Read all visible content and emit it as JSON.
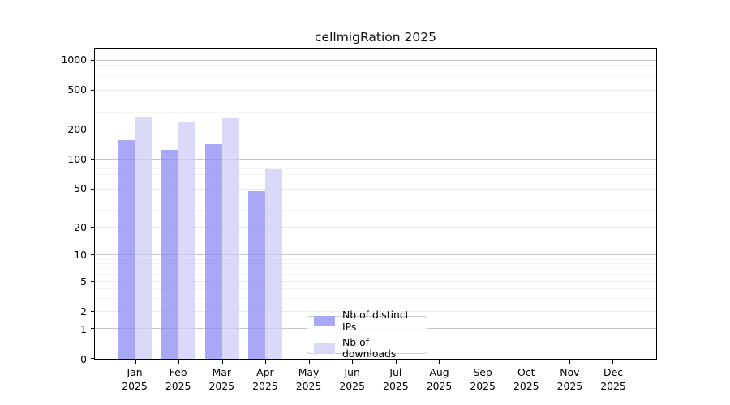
{
  "title": "cellmigRation 2025",
  "chart_data": {
    "type": "bar",
    "title": "cellmigRation 2025",
    "categories": [
      "Jan",
      "Feb",
      "Mar",
      "Apr",
      "May",
      "Jun",
      "Jul",
      "Aug",
      "Sep",
      "Oct",
      "Nov",
      "Dec"
    ],
    "x_year_label": "2025",
    "series": [
      {
        "name": "Nb of distinct IPs",
        "legend_color": "#a8a8f4",
        "fill_rgba": "rgba(139,139,243,0.75)",
        "values": [
          160,
          126,
          145,
          48,
          null,
          null,
          null,
          null,
          null,
          null,
          null,
          null
        ]
      },
      {
        "name": "Nb of downloads",
        "legend_color": "#d8d8f9",
        "fill_rgba": "rgba(204,204,248,0.75)",
        "values": [
          277,
          240,
          267,
          81,
          null,
          null,
          null,
          null,
          null,
          null,
          null,
          null
        ]
      }
    ],
    "xlabel": "",
    "ylabel": "",
    "yscale": "log1p",
    "ylim": [
      0,
      1337
    ],
    "y_labeled_ticks": [
      0,
      1,
      2,
      5,
      10,
      20,
      50,
      100,
      200,
      500,
      1000
    ],
    "y_decade_ticks": [
      1,
      10,
      100,
      1000
    ],
    "y_minor_gridlines": [
      3,
      4,
      6,
      7,
      8,
      9,
      30,
      40,
      60,
      70,
      80,
      90,
      300,
      400,
      600,
      700,
      800,
      900
    ],
    "grid": "horizontal",
    "legend_position": "bottom-center"
  },
  "colors": {
    "background": "#ffffff",
    "axis": "#000000",
    "gridline_decade": "#c6c6c6",
    "gridline_minor": "#f3f3f3",
    "bar_distinct_ips": "#a8a8f4",
    "bar_downloads": "#d8d8f9"
  }
}
